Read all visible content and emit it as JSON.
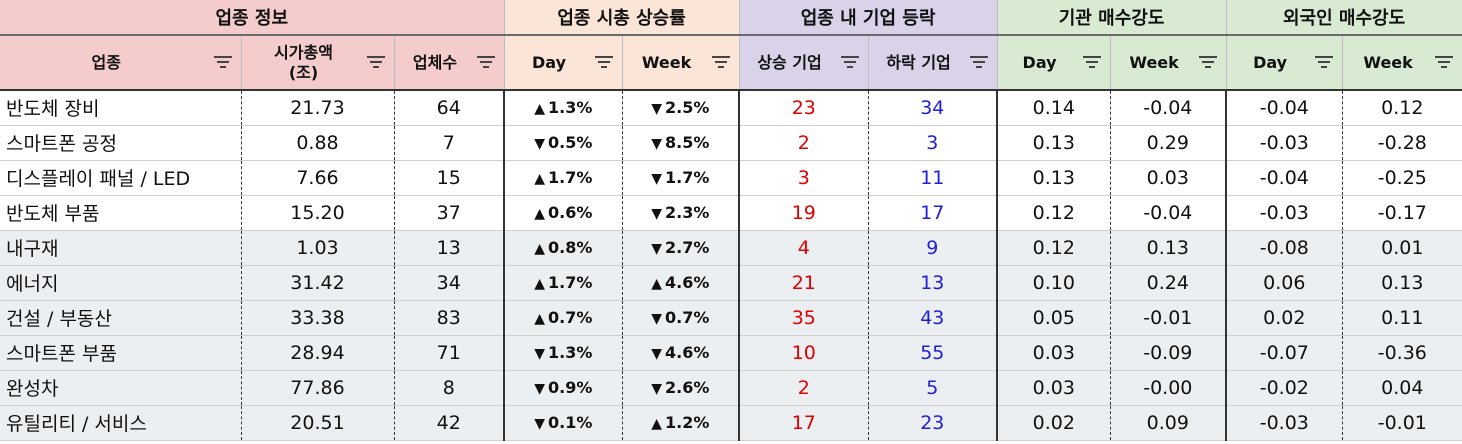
{
  "groups": {
    "info": "업종 정보",
    "cap_change": "업종 시총 상승률",
    "rise_fall": "업종 내 기업 등락",
    "institution": "기관 매수강도",
    "foreigner": "외국인 매수강도"
  },
  "columns": {
    "sector": "업종",
    "market_cap_line1": "시가총액",
    "market_cap_line2": "(조)",
    "count": "업체수",
    "cap_day": "Day",
    "cap_week": "Week",
    "rising": "상승 기업",
    "falling": "하락 기업",
    "inst_day": "Day",
    "inst_week": "Week",
    "for_day": "Day",
    "for_week": "Week"
  },
  "icons": {
    "filter": "filter-icon",
    "up": "triangle-up-icon",
    "down": "triangle-down-icon"
  },
  "colors": {
    "positive": "#e00000",
    "negative": "#1f1fd6",
    "header_info": "#f4cccc",
    "header_cap": "#fbe5d6",
    "header_rise": "#d9d2e9",
    "header_flow": "#d9ead3",
    "row_shade": "#eceff1"
  },
  "rows": [
    {
      "sector": "반도체 장비",
      "market_cap": "21.73",
      "count": "64",
      "cap_day": {
        "dir": "up",
        "text": "1.3%"
      },
      "cap_week": {
        "dir": "down",
        "text": "2.5%"
      },
      "rising": "23",
      "falling": "34",
      "inst_day": "0.14",
      "inst_week": "-0.04",
      "for_day": "-0.04",
      "for_week": "0.12",
      "shade": false
    },
    {
      "sector": "스마트폰 공정",
      "market_cap": "0.88",
      "count": "7",
      "cap_day": {
        "dir": "down",
        "text": "0.5%"
      },
      "cap_week": {
        "dir": "down",
        "text": "8.5%"
      },
      "rising": "2",
      "falling": "3",
      "inst_day": "0.13",
      "inst_week": "0.29",
      "for_day": "-0.03",
      "for_week": "-0.28",
      "shade": false
    },
    {
      "sector": "디스플레이 패널 / LED",
      "market_cap": "7.66",
      "count": "15",
      "cap_day": {
        "dir": "up",
        "text": "1.7%"
      },
      "cap_week": {
        "dir": "down",
        "text": "1.7%"
      },
      "rising": "3",
      "falling": "11",
      "inst_day": "0.13",
      "inst_week": "0.03",
      "for_day": "-0.04",
      "for_week": "-0.25",
      "shade": false
    },
    {
      "sector": "반도체 부품",
      "market_cap": "15.20",
      "count": "37",
      "cap_day": {
        "dir": "up",
        "text": "0.6%"
      },
      "cap_week": {
        "dir": "down",
        "text": "2.3%"
      },
      "rising": "19",
      "falling": "17",
      "inst_day": "0.12",
      "inst_week": "-0.04",
      "for_day": "-0.03",
      "for_week": "-0.17",
      "shade": false
    },
    {
      "sector": "내구재",
      "market_cap": "1.03",
      "count": "13",
      "cap_day": {
        "dir": "up",
        "text": "0.8%"
      },
      "cap_week": {
        "dir": "down",
        "text": "2.7%"
      },
      "rising": "4",
      "falling": "9",
      "inst_day": "0.12",
      "inst_week": "0.13",
      "for_day": "-0.08",
      "for_week": "0.01",
      "shade": true
    },
    {
      "sector": "에너지",
      "market_cap": "31.42",
      "count": "34",
      "cap_day": {
        "dir": "up",
        "text": "1.7%"
      },
      "cap_week": {
        "dir": "up",
        "text": "4.6%"
      },
      "rising": "21",
      "falling": "13",
      "inst_day": "0.10",
      "inst_week": "0.24",
      "for_day": "0.06",
      "for_week": "0.13",
      "shade": true
    },
    {
      "sector": "건설 / 부동산",
      "market_cap": "33.38",
      "count": "83",
      "cap_day": {
        "dir": "up",
        "text": "0.7%"
      },
      "cap_week": {
        "dir": "down",
        "text": "0.7%"
      },
      "rising": "35",
      "falling": "43",
      "inst_day": "0.05",
      "inst_week": "-0.01",
      "for_day": "0.02",
      "for_week": "0.11",
      "shade": true
    },
    {
      "sector": "스마트폰 부품",
      "market_cap": "28.94",
      "count": "71",
      "cap_day": {
        "dir": "down",
        "text": "1.3%"
      },
      "cap_week": {
        "dir": "down",
        "text": "4.6%"
      },
      "rising": "10",
      "falling": "55",
      "inst_day": "0.03",
      "inst_week": "-0.09",
      "for_day": "-0.07",
      "for_week": "-0.36",
      "shade": true
    },
    {
      "sector": "완성차",
      "market_cap": "77.86",
      "count": "8",
      "cap_day": {
        "dir": "down",
        "text": "0.9%"
      },
      "cap_week": {
        "dir": "down",
        "text": "2.6%"
      },
      "rising": "2",
      "falling": "5",
      "inst_day": "0.03",
      "inst_week": "-0.00",
      "for_day": "-0.02",
      "for_week": "0.04",
      "shade": true
    },
    {
      "sector": "유틸리티 / 서비스",
      "market_cap": "20.51",
      "count": "42",
      "cap_day": {
        "dir": "down",
        "text": "0.1%"
      },
      "cap_week": {
        "dir": "up",
        "text": "1.2%"
      },
      "rising": "17",
      "falling": "23",
      "inst_day": "0.02",
      "inst_week": "0.09",
      "for_day": "-0.03",
      "for_week": "-0.01",
      "shade": true
    }
  ]
}
